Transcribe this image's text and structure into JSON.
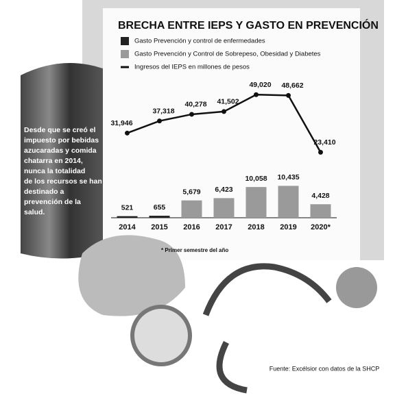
{
  "chart_data": {
    "type": "combo",
    "title": "BRECHA ENTRE IEPS Y GASTO EN PREVENCIÓN",
    "categories": [
      "2014",
      "2015",
      "2016",
      "2017",
      "2018",
      "2019",
      "2020*"
    ],
    "series": [
      {
        "name": "Gasto Prevención y control de enfermedades",
        "color": "#222222",
        "kind": "bar",
        "values": [
          521,
          655,
          null,
          null,
          null,
          null,
          null
        ]
      },
      {
        "name": "Gasto Prevención y Control de Sobrepeso, Obesidad y Diabetes",
        "color": "#9a9a9a",
        "kind": "bar",
        "values": [
          null,
          null,
          5679,
          6423,
          10058,
          10435,
          4428
        ],
        "value_labels": [
          null,
          null,
          "5,679",
          "6,423",
          "10,058",
          "10,435",
          "4,428"
        ]
      },
      {
        "name": "Ingresos del IEPS en millones de pesos",
        "color": "#111111",
        "kind": "line",
        "axis": "y2",
        "values": [
          31946,
          37318,
          40278,
          41502,
          49020,
          48662,
          23410
        ],
        "value_labels": [
          "31,946",
          "37,318",
          "40,278",
          "41,502",
          "49,020",
          "48,662",
          "23,410"
        ]
      }
    ],
    "ylim": [
      0,
      13000
    ],
    "y2lim": [
      15000,
      50000
    ],
    "note": "* Primer semestre del año",
    "annotation": [
      "Desde que se creó el",
      "impuesto por bebidas",
      "azucaradas y comida",
      "chatarra en 2014,",
      "nunca la totalidad",
      "de los recursos se han",
      "destinado a",
      "prevención de la",
      "salud."
    ],
    "source": "Fuente: Excélsior con datos de la SHCP"
  }
}
